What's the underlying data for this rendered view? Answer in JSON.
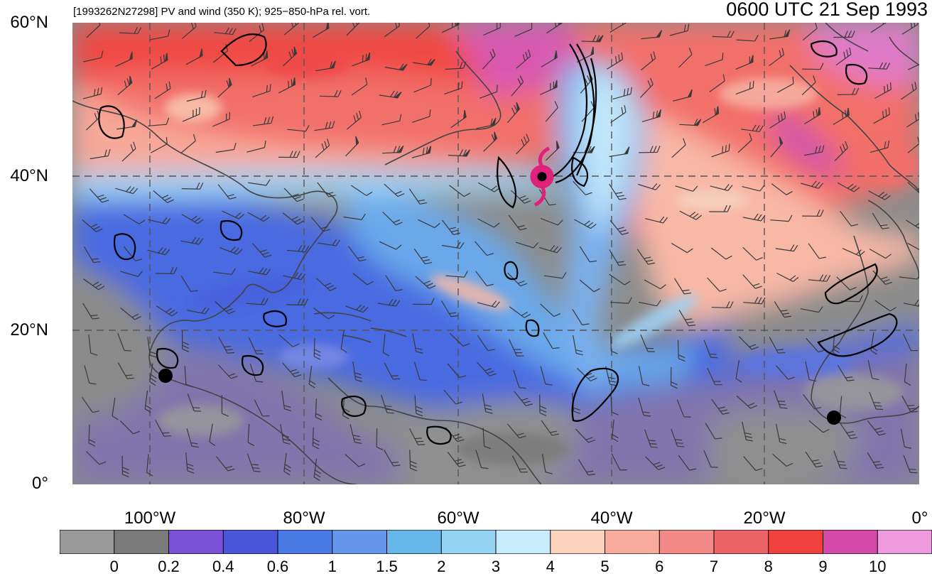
{
  "header": {
    "left_title": "[1993262N27298] PV and wind (350 K); 925−850-hPa rel. vort.",
    "right_title": "0600 UTC 21 Sep 1993"
  },
  "axes": {
    "lat_labels": [
      "60°N",
      "40°N",
      "20°N",
      "0°"
    ],
    "lon_labels": [
      "100°W",
      "80°W",
      "60°W",
      "40°W",
      "20°W",
      "0°"
    ]
  },
  "colorbar": {
    "labels": [
      "0",
      "0.2",
      "0.4",
      "0.6",
      "1",
      "1.5",
      "2",
      "3",
      "4",
      "5",
      "6",
      "7",
      "8",
      "9",
      "10"
    ],
    "colors": [
      "#9a9a9a",
      "#7a7a7a",
      "#7a52d8",
      "#4a55dc",
      "#4a7ae6",
      "#6496ec",
      "#66b6ea",
      "#96d4f4",
      "#c8ecfb",
      "#fbd3bd",
      "#f8ac9e",
      "#f48a88",
      "#ee6466",
      "#f2403e",
      "#d44aa8",
      "#ee9ade"
    ]
  },
  "map": {
    "region": "North Atlantic",
    "extent": {
      "lon_min": -110,
      "lon_max": 0,
      "lat_min": 0,
      "lat_max": 60
    },
    "storm_symbol": "tropical-cyclone-icon",
    "storm_color": "#e0207a",
    "storm_position": {
      "lon": -49,
      "lat": 40
    }
  }
}
